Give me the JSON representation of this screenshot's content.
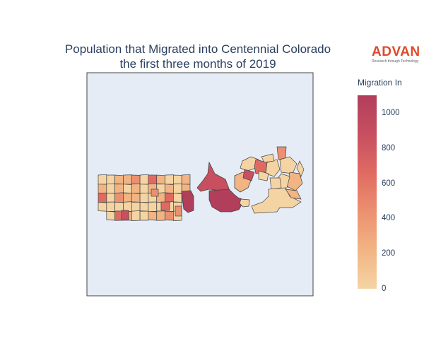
{
  "title": {
    "line1": "Population that Migrated into Centennial Colorado",
    "line2": "the first three months of 2019"
  },
  "logo": {
    "name": "ADVAN",
    "tagline": "Research through Technology",
    "color": "#e0492a"
  },
  "colorbar": {
    "title": "Migration In",
    "min": 0,
    "max": 1100,
    "ticks": [
      "0",
      "200",
      "400",
      "600",
      "800",
      "1000"
    ],
    "colors": [
      "#f5d4a4",
      "#f2b483",
      "#ec9070",
      "#e06a62",
      "#c74f60",
      "#b13e5b"
    ]
  },
  "map": {
    "background": "#e5ecf6",
    "border_color": "#444444"
  }
}
